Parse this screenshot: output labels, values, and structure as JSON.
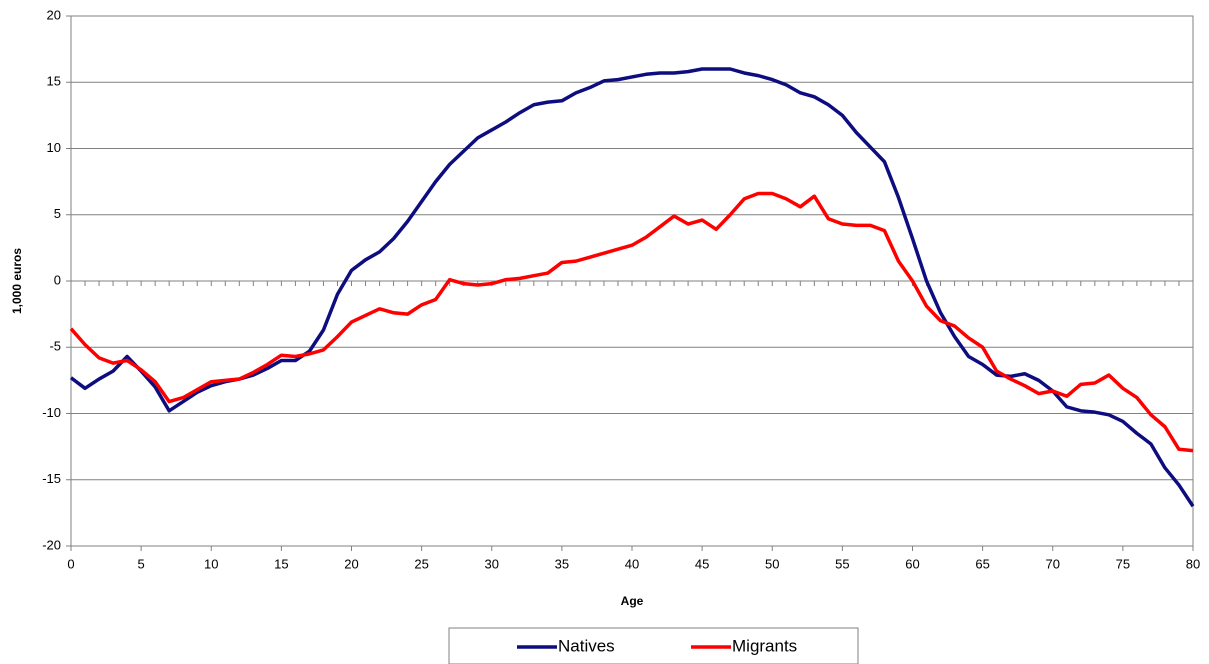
{
  "chart_data": {
    "type": "line",
    "x_label": "Age",
    "y_label": "1,000 euros",
    "x": [
      0,
      1,
      2,
      3,
      4,
      5,
      6,
      7,
      8,
      9,
      10,
      11,
      12,
      13,
      14,
      15,
      16,
      17,
      18,
      19,
      20,
      21,
      22,
      23,
      24,
      25,
      26,
      27,
      28,
      29,
      30,
      31,
      32,
      33,
      34,
      35,
      36,
      37,
      38,
      39,
      40,
      41,
      42,
      43,
      44,
      45,
      46,
      47,
      48,
      49,
      50,
      51,
      52,
      53,
      54,
      55,
      56,
      57,
      58,
      59,
      60,
      61,
      62,
      63,
      64,
      65,
      66,
      67,
      68,
      69,
      70,
      71,
      72,
      73,
      74,
      75,
      76,
      77,
      78,
      79,
      80
    ],
    "series": [
      {
        "name": "Natives",
        "color": "#0d0d80",
        "values": [
          -7.3,
          -8.1,
          -7.4,
          -6.8,
          -5.7,
          -6.8,
          -8.0,
          -9.8,
          -9.1,
          -8.4,
          -7.9,
          -7.6,
          -7.4,
          -7.1,
          -6.6,
          -6.0,
          -6.0,
          -5.3,
          -3.7,
          -1.0,
          0.8,
          1.6,
          2.2,
          3.2,
          4.5,
          6.0,
          7.5,
          8.8,
          9.8,
          10.8,
          11.4,
          12.0,
          12.7,
          13.3,
          13.5,
          13.6,
          14.2,
          14.6,
          15.1,
          15.2,
          15.4,
          15.6,
          15.7,
          15.7,
          15.8,
          16.0,
          16.0,
          16.0,
          15.7,
          15.5,
          15.2,
          14.8,
          14.2,
          13.9,
          13.3,
          12.5,
          11.2,
          10.1,
          9.0,
          6.3,
          3.2,
          0.0,
          -2.4,
          -4.2,
          -5.7,
          -6.3,
          -7.1,
          -7.2,
          -7.0,
          -7.5,
          -8.3,
          -9.5,
          -9.8,
          -9.9,
          -10.1,
          -10.6,
          -11.5,
          -12.3,
          -14.1,
          -15.4,
          -17.0
        ]
      },
      {
        "name": "Migrants",
        "color": "#ff0000",
        "values": [
          -3.6,
          -4.8,
          -5.8,
          -6.2,
          -6.0,
          -6.7,
          -7.6,
          -9.1,
          -8.8,
          -8.2,
          -7.6,
          -7.5,
          -7.4,
          -6.9,
          -6.3,
          -5.6,
          -5.7,
          -5.5,
          -5.2,
          -4.2,
          -3.1,
          -2.6,
          -2.1,
          -2.4,
          -2.5,
          -1.8,
          -1.4,
          0.1,
          -0.2,
          -0.3,
          -0.2,
          0.1,
          0.2,
          0.4,
          0.6,
          1.4,
          1.5,
          1.8,
          2.1,
          2.4,
          2.7,
          3.3,
          4.1,
          4.9,
          4.3,
          4.6,
          3.9,
          5.0,
          6.2,
          6.6,
          6.6,
          6.2,
          5.6,
          6.4,
          4.7,
          4.3,
          4.2,
          4.2,
          3.8,
          1.5,
          0.0,
          -1.9,
          -3.0,
          -3.4,
          -4.3,
          -5.0,
          -6.8,
          -7.4,
          -7.9,
          -8.5,
          -8.3,
          -8.7,
          -7.8,
          -7.7,
          -7.1,
          -8.1,
          -8.8,
          -10.1,
          -11.0,
          -12.7,
          -12.8
        ]
      }
    ],
    "xlim": [
      0,
      80
    ],
    "xticks": [
      0,
      5,
      10,
      15,
      20,
      25,
      30,
      35,
      40,
      45,
      50,
      55,
      60,
      65,
      70,
      75,
      80
    ],
    "ylim": [
      -20,
      20
    ],
    "yticks": [
      -20,
      -15,
      -10,
      -5,
      0,
      5,
      10,
      15,
      20
    ],
    "grid": true,
    "legend": "bottom"
  }
}
